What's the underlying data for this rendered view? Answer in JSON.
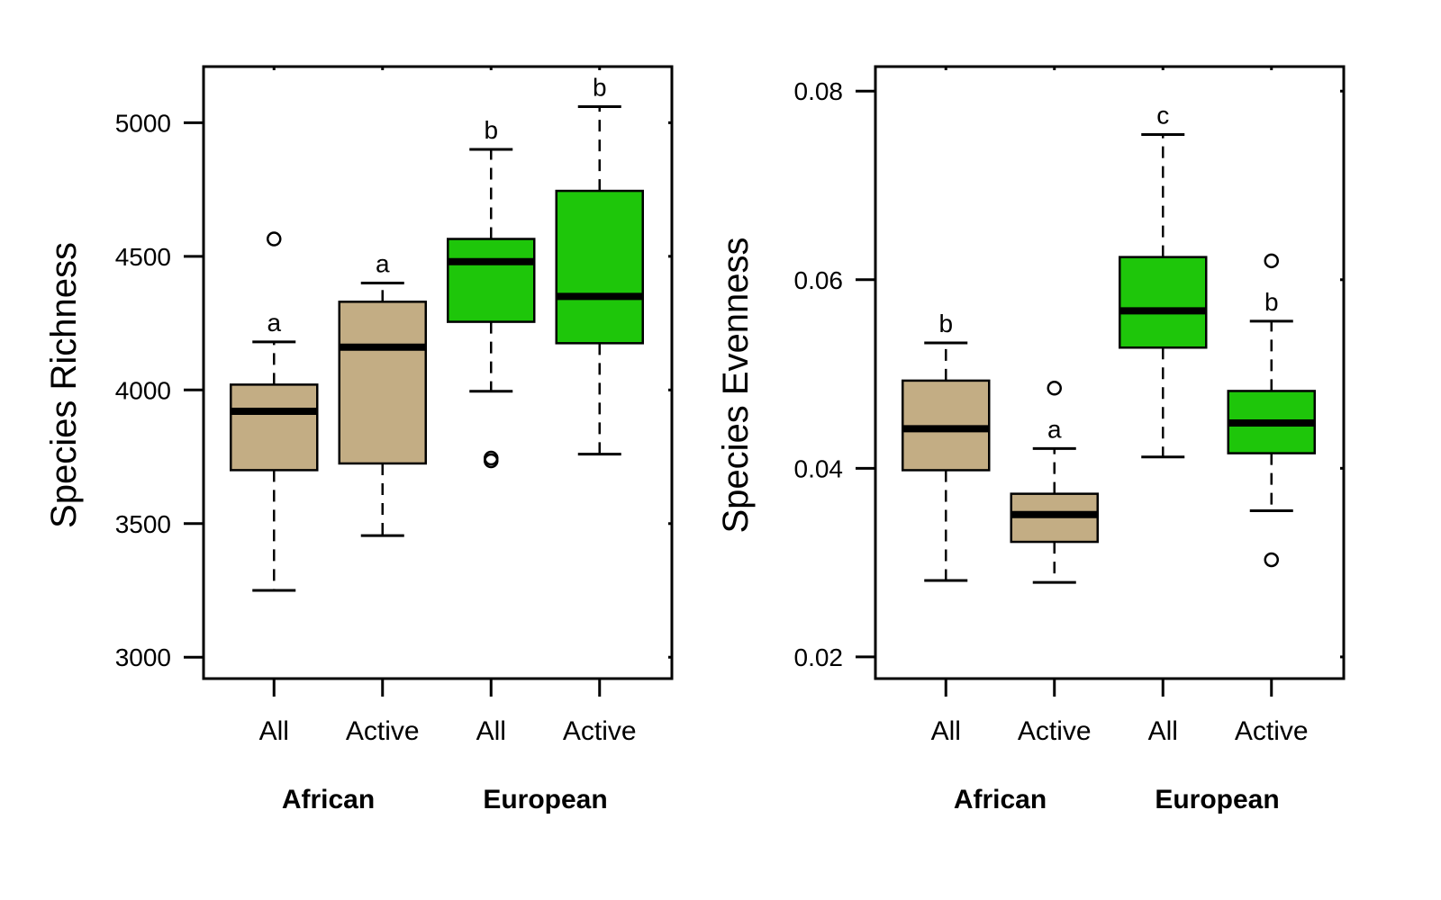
{
  "chart_data": [
    {
      "type": "box",
      "title": "",
      "ylabel": "Species Richness",
      "ylim": [
        2920,
        5210
      ],
      "yticks": [
        3000,
        3500,
        4000,
        4500,
        5000
      ],
      "ytick_labels": [
        "3000",
        "3500",
        "4000",
        "4500",
        "5000"
      ],
      "categories": [
        "All",
        "Active",
        "All",
        "Active"
      ],
      "groups": [
        {
          "label": "African",
          "members": [
            0,
            1
          ]
        },
        {
          "label": "European",
          "members": [
            2,
            3
          ]
        }
      ],
      "colors": [
        "#c3ad84",
        "#c3ad84",
        "#1ec60a",
        "#1ec60a"
      ],
      "boxes": [
        {
          "whisker_low": 3250,
          "q1": 3700,
          "median": 3920,
          "q3": 4020,
          "whisker_high": 4180,
          "outliers": [
            4565
          ],
          "letter": "a"
        },
        {
          "whisker_low": 3455,
          "q1": 3725,
          "median": 4160,
          "q3": 4330,
          "whisker_high": 4400,
          "outliers": [],
          "letter": "a"
        },
        {
          "whisker_low": 3995,
          "q1": 4255,
          "median": 4480,
          "q3": 4565,
          "whisker_high": 4900,
          "outliers": [
            3745,
            3735
          ],
          "letter": "b"
        },
        {
          "whisker_low": 3760,
          "q1": 4175,
          "median": 4350,
          "q3": 4745,
          "whisker_high": 5060,
          "outliers": [],
          "letter": "b"
        }
      ]
    },
    {
      "type": "box",
      "title": "",
      "ylabel": "Species Evenness",
      "ylim": [
        0.0177,
        0.0826
      ],
      "yticks": [
        0.02,
        0.04,
        0.06,
        0.08
      ],
      "ytick_labels": [
        "0.02",
        "0.04",
        "0.06",
        "0.08"
      ],
      "categories": [
        "All",
        "Active",
        "All",
        "Active"
      ],
      "groups": [
        {
          "label": "African",
          "members": [
            0,
            1
          ]
        },
        {
          "label": "European",
          "members": [
            2,
            3
          ]
        }
      ],
      "colors": [
        "#c3ad84",
        "#c3ad84",
        "#1ec60a",
        "#1ec60a"
      ],
      "boxes": [
        {
          "whisker_low": 0.0281,
          "q1": 0.0398,
          "median": 0.0442,
          "q3": 0.0493,
          "whisker_high": 0.0533,
          "outliers": [],
          "letter": "b"
        },
        {
          "whisker_low": 0.0279,
          "q1": 0.0322,
          "median": 0.0351,
          "q3": 0.0373,
          "whisker_high": 0.0421,
          "outliers": [
            0.0485
          ],
          "letter": "a"
        },
        {
          "whisker_low": 0.0412,
          "q1": 0.0528,
          "median": 0.0567,
          "q3": 0.0624,
          "whisker_high": 0.0754,
          "outliers": [],
          "letter": "c"
        },
        {
          "whisker_low": 0.0355,
          "q1": 0.0416,
          "median": 0.0448,
          "q3": 0.0482,
          "whisker_high": 0.0556,
          "outliers": [
            0.062,
            0.0303
          ],
          "letter": "b"
        }
      ]
    }
  ]
}
